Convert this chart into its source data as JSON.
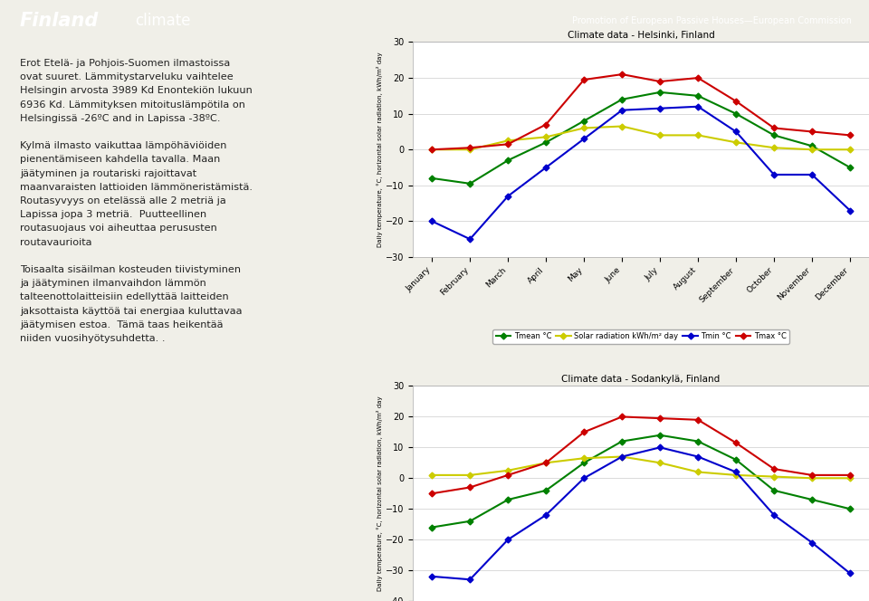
{
  "months": [
    "January",
    "February",
    "March",
    "April",
    "May",
    "June",
    "July",
    "August",
    "September",
    "October",
    "November",
    "December"
  ],
  "helsinki": {
    "title": "Climate data - Helsinki, Finland",
    "tmean": [
      -8,
      -9.5,
      -3,
      2,
      8,
      14,
      16,
      15,
      10,
      4,
      1,
      -5
    ],
    "solar": [
      0,
      0,
      2.5,
      3.5,
      6,
      6.5,
      4,
      4,
      2,
      0.5,
      0,
      0
    ],
    "tmin": [
      -20,
      -25,
      -13,
      -5,
      3,
      11,
      11.5,
      12,
      5,
      -7,
      -7,
      -17
    ],
    "tmax": [
      0,
      0.5,
      1.5,
      7,
      19.5,
      21,
      19,
      20,
      13.5,
      6,
      5,
      4
    ],
    "ylim": [
      -30,
      30
    ],
    "yticks": [
      -30,
      -20,
      -10,
      0,
      10,
      20,
      30
    ]
  },
  "sodankyla": {
    "title": "Climate data - Sodankylä, Finland",
    "tmean": [
      -16,
      -14,
      -7,
      -4,
      5,
      12,
      14,
      12,
      6,
      -4,
      -7,
      -10
    ],
    "solar": [
      1,
      1,
      2.5,
      5,
      6.5,
      7,
      5,
      2,
      1,
      0.5,
      0,
      0
    ],
    "tmin": [
      -32,
      -33,
      -20,
      -12,
      0,
      7,
      10,
      7,
      2,
      -12,
      -21,
      -31
    ],
    "tmax": [
      -5,
      -3,
      1,
      5,
      15,
      20,
      19.5,
      19,
      11.5,
      3,
      1,
      1
    ],
    "ylim": [
      -40,
      30
    ],
    "yticks": [
      -40,
      -30,
      -20,
      -10,
      0,
      10,
      20,
      30
    ]
  },
  "colors": {
    "tmean": "#008000",
    "solar": "#CCCC00",
    "tmin": "#0000CC",
    "tmax": "#CC0000"
  },
  "legend_labels": [
    "Tmean °C",
    "Solar radiation kWh/m² day",
    "Tmin °C",
    "Tmax °C"
  ],
  "header_text": "Promotion of European Passive Houses—European Commission",
  "title_main": "Finland climate",
  "bg_color": "#f0efe8",
  "chart_bg": "#ffffff",
  "header_bg": "#5b8db0"
}
